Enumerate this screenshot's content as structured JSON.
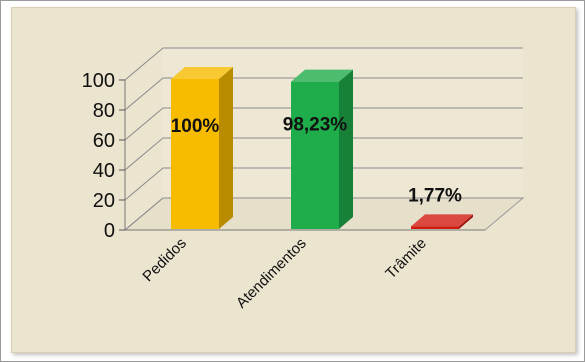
{
  "chart_data": {
    "type": "bar",
    "three_d": true,
    "categories": [
      "Pedidos",
      "Atendimentos",
      "Trâmite"
    ],
    "values": [
      100,
      98.23,
      1.77
    ],
    "data_labels": [
      "100%",
      "98,23%",
      "1,77%"
    ],
    "colors": [
      "#f7bb00",
      "#1fac4a",
      "#d11a10"
    ],
    "ylim": [
      0,
      100
    ],
    "yticks": [
      0,
      20,
      40,
      60,
      80,
      100
    ],
    "ytick_labels": [
      "0",
      "20",
      "40",
      "60",
      "80",
      "100"
    ],
    "grid": true,
    "legend": "none",
    "title": "",
    "xlabel": "",
    "ylabel": ""
  }
}
